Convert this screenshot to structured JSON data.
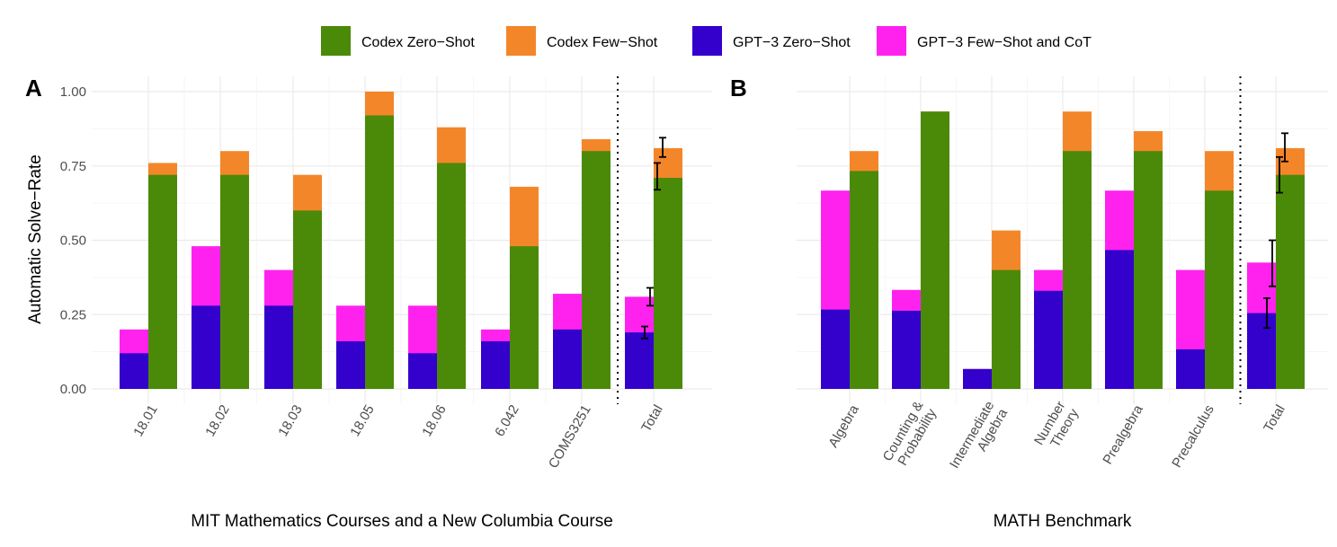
{
  "legend": {
    "items": [
      {
        "name": "Codex Zero-Shot",
        "label": "Codex Zero−Shot",
        "color": "#4b8a08"
      },
      {
        "name": "Codex Few-Shot",
        "label": "Codex Few−Shot",
        "color": "#f4862a"
      },
      {
        "name": "GPT-3 Zero-Shot",
        "label": "GPT−3 Zero−Shot",
        "color": "#3300cc"
      },
      {
        "name": "GPT-3 Few-Shot and CoT",
        "label": "GPT−3 Few−Shot and CoT",
        "color": "#ff22ee"
      }
    ]
  },
  "chart_data": [
    {
      "type": "bar",
      "panel_label": "A",
      "ylabel": "Automatic Solve−Rate",
      "xlabel": "MIT Mathematics Courses and a New Columbia Course",
      "ylim": [
        0,
        1
      ],
      "yticks": [
        "0.00",
        "0.25",
        "0.50",
        "0.75",
        "1.00"
      ],
      "categories": [
        "18.01",
        "18.02",
        "18.03",
        "18.05",
        "18.06",
        "6.042",
        "COMS3251",
        "Total"
      ],
      "gpt3_zero_shot": [
        0.12,
        0.28,
        0.28,
        0.16,
        0.12,
        0.16,
        0.2,
        0.19
      ],
      "gpt3_few_shot_cot": [
        0.2,
        0.48,
        0.4,
        0.28,
        0.28,
        0.2,
        0.32,
        0.31
      ],
      "codex_zero_shot": [
        0.72,
        0.72,
        0.6,
        0.92,
        0.76,
        0.48,
        0.8,
        0.71
      ],
      "codex_few_shot": [
        0.76,
        0.8,
        0.72,
        1.0,
        0.88,
        0.68,
        0.84,
        0.81
      ],
      "error_bars": [
        {
          "category": "Total",
          "series": "GPT-3 Zero-Shot",
          "low": 0.17,
          "high": 0.21
        },
        {
          "category": "Total",
          "series": "GPT-3 Few-Shot and CoT",
          "low": 0.28,
          "high": 0.34
        },
        {
          "category": "Total",
          "series": "Codex Zero-Shot",
          "low": 0.67,
          "high": 0.76
        },
        {
          "category": "Total",
          "series": "Codex Few-Shot",
          "low": 0.78,
          "high": 0.845
        }
      ],
      "separator_before": "Total"
    },
    {
      "type": "bar",
      "panel_label": "B",
      "xlabel": "MATH Benchmark",
      "ylim": [
        0,
        1
      ],
      "categories": [
        "Algebra",
        "Counting &\nProbability",
        "Intermediate\nAlgebra",
        "Number\nTheory",
        "Prealgebra",
        "Precalculus",
        "Total"
      ],
      "gpt3_zero_shot": [
        0.267,
        0.263,
        0.067,
        0.33,
        0.467,
        0.133,
        0.255
      ],
      "gpt3_few_shot_cot": [
        0.667,
        0.333,
        0.067,
        0.4,
        0.667,
        0.4,
        0.425
      ],
      "codex_zero_shot": [
        0.733,
        0.933,
        0.4,
        0.8,
        0.8,
        0.667,
        0.72
      ],
      "codex_few_shot": [
        0.8,
        0.933,
        0.533,
        0.933,
        0.867,
        0.8,
        0.81
      ],
      "error_bars": [
        {
          "category": "Total",
          "series": "GPT-3 Zero-Shot",
          "low": 0.205,
          "high": 0.305
        },
        {
          "category": "Total",
          "series": "GPT-3 Few-Shot and CoT",
          "low": 0.345,
          "high": 0.5
        },
        {
          "category": "Total",
          "series": "Codex Zero-Shot",
          "low": 0.66,
          "high": 0.78
        },
        {
          "category": "Total",
          "series": "Codex Few-Shot",
          "low": 0.765,
          "high": 0.86
        }
      ],
      "separator_before": "Total"
    }
  ]
}
